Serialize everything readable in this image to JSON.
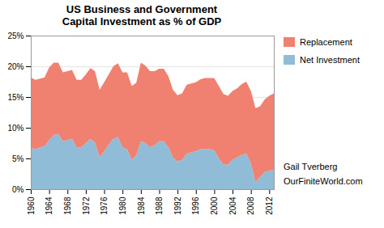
{
  "chart_data": {
    "type": "area",
    "title": "US Business and Government\nCapital Investment as % of GDP",
    "stacked": true,
    "grid": true,
    "legend": "right",
    "x": [
      1960,
      1961,
      1962,
      1963,
      1964,
      1965,
      1966,
      1967,
      1968,
      1969,
      1970,
      1971,
      1972,
      1973,
      1974,
      1975,
      1976,
      1977,
      1978,
      1979,
      1980,
      1981,
      1982,
      1983,
      1984,
      1985,
      1986,
      1987,
      1988,
      1989,
      1990,
      1991,
      1992,
      1993,
      1994,
      1995,
      1996,
      1997,
      1998,
      1999,
      2000,
      2001,
      2002,
      2003,
      2004,
      2005,
      2006,
      2007,
      2008,
      2009,
      2010,
      2011,
      2012,
      2013
    ],
    "series": [
      {
        "name": "Net Investment",
        "color": "#90bcd8",
        "values": [
          0.067,
          0.065,
          0.068,
          0.07,
          0.08,
          0.088,
          0.09,
          0.078,
          0.08,
          0.082,
          0.068,
          0.068,
          0.075,
          0.082,
          0.076,
          0.052,
          0.062,
          0.073,
          0.082,
          0.085,
          0.068,
          0.065,
          0.048,
          0.055,
          0.078,
          0.075,
          0.068,
          0.072,
          0.078,
          0.078,
          0.068,
          0.052,
          0.045,
          0.048,
          0.058,
          0.06,
          0.062,
          0.065,
          0.065,
          0.065,
          0.063,
          0.05,
          0.04,
          0.04,
          0.048,
          0.052,
          0.056,
          0.058,
          0.042,
          0.012,
          0.02,
          0.028,
          0.03,
          0.032
        ]
      },
      {
        "name": "Replacement",
        "color": "#f08070",
        "values": [
          0.115,
          0.113,
          0.112,
          0.112,
          0.118,
          0.118,
          0.116,
          0.112,
          0.112,
          0.112,
          0.11,
          0.11,
          0.112,
          0.115,
          0.116,
          0.11,
          0.112,
          0.114,
          0.118,
          0.12,
          0.122,
          0.125,
          0.12,
          0.118,
          0.128,
          0.126,
          0.124,
          0.12,
          0.118,
          0.118,
          0.116,
          0.11,
          0.108,
          0.108,
          0.112,
          0.112,
          0.112,
          0.114,
          0.116,
          0.116,
          0.118,
          0.118,
          0.115,
          0.112,
          0.112,
          0.112,
          0.115,
          0.117,
          0.118,
          0.12,
          0.115,
          0.118,
          0.122,
          0.124
        ]
      }
    ],
    "xlim": [
      1960,
      2013
    ],
    "xticks": [
      1960,
      1964,
      1968,
      1972,
      1976,
      1980,
      1984,
      1988,
      1992,
      1996,
      2000,
      2004,
      2008,
      2012
    ],
    "ylim": [
      0,
      0.25
    ],
    "yticks": [
      {
        "value": 0,
        "label": "0%"
      },
      {
        "value": 0.05,
        "label": "5%"
      },
      {
        "value": 0.1,
        "label": "10%"
      },
      {
        "value": 0.15,
        "label": "15%"
      },
      {
        "value": 0.2,
        "label": "20%"
      },
      {
        "value": 0.25,
        "label": "25%"
      }
    ],
    "annotations": [
      "Gail Tverberg",
      "OurFiniteWorld.com"
    ]
  }
}
